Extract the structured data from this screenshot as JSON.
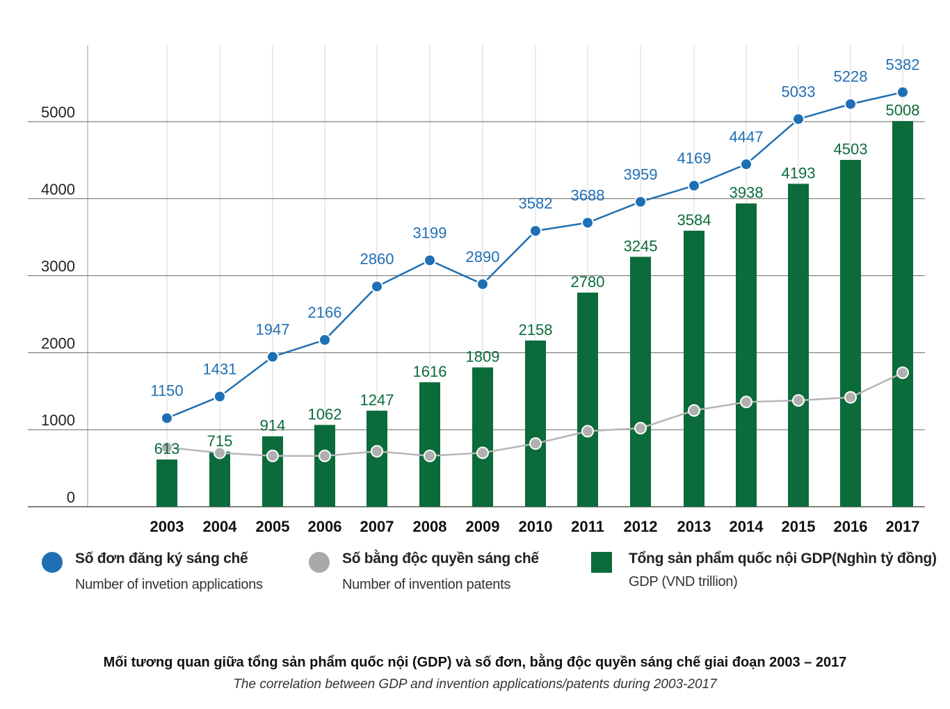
{
  "chart_data": {
    "type": "bar+line",
    "categories": [
      "2003",
      "2004",
      "2005",
      "2006",
      "2007",
      "2008",
      "2009",
      "2010",
      "2011",
      "2012",
      "2013",
      "2014",
      "2015",
      "2016",
      "2017"
    ],
    "series": [
      {
        "name": "Tổng sản phẩm quốc nội GDP(Nghìn tỷ đồng)",
        "type": "bar",
        "color": "#0b6b3a",
        "values": [
          613,
          715,
          914,
          1062,
          1247,
          1616,
          1809,
          2158,
          2780,
          3245,
          3584,
          3938,
          4193,
          4503,
          5008
        ]
      },
      {
        "name": "Số đơn đăng ký sáng chế",
        "type": "line",
        "color": "#1f6fb4",
        "values": [
          1150,
          1431,
          1947,
          2166,
          2860,
          3199,
          2890,
          3582,
          3688,
          3959,
          4169,
          4447,
          5033,
          5228,
          5382
        ]
      },
      {
        "name": "Số bằng độc quyền sáng chế",
        "type": "line",
        "color": "#a0a0a0",
        "values": [
          770,
          700,
          660,
          660,
          720,
          660,
          700,
          820,
          980,
          1020,
          1250,
          1360,
          1380,
          1420,
          1740
        ]
      }
    ],
    "yticks": [
      0,
      1000,
      2000,
      3000,
      4000,
      5000
    ],
    "ylim": [
      0,
      5800
    ],
    "grid": true
  },
  "legend": [
    {
      "title": "Số đơn đăng ký sáng chế",
      "subtitle": "Number of invetion applications",
      "shape": "circle",
      "color": "#1f6fb4"
    },
    {
      "title": "Số bằng độc quyền sáng chế",
      "subtitle": "Number of invention patents",
      "shape": "circle",
      "color": "#a9a9a9"
    },
    {
      "title": "Tổng sản phẩm quốc nội GDP(Nghìn tỷ đồng)",
      "subtitle": "GDP (VND trillion)",
      "shape": "square",
      "color": "#0b6b3a"
    }
  ],
  "caption": {
    "title": "Mối tương quan giữa tổng sản phẩm quốc nội (GDP) và số đơn, bằng  độc quyền sáng chế giai đoạn 2003 – 2017",
    "subtitle": "The correlation between GDP and invention applications/patents during 2003-2017"
  }
}
